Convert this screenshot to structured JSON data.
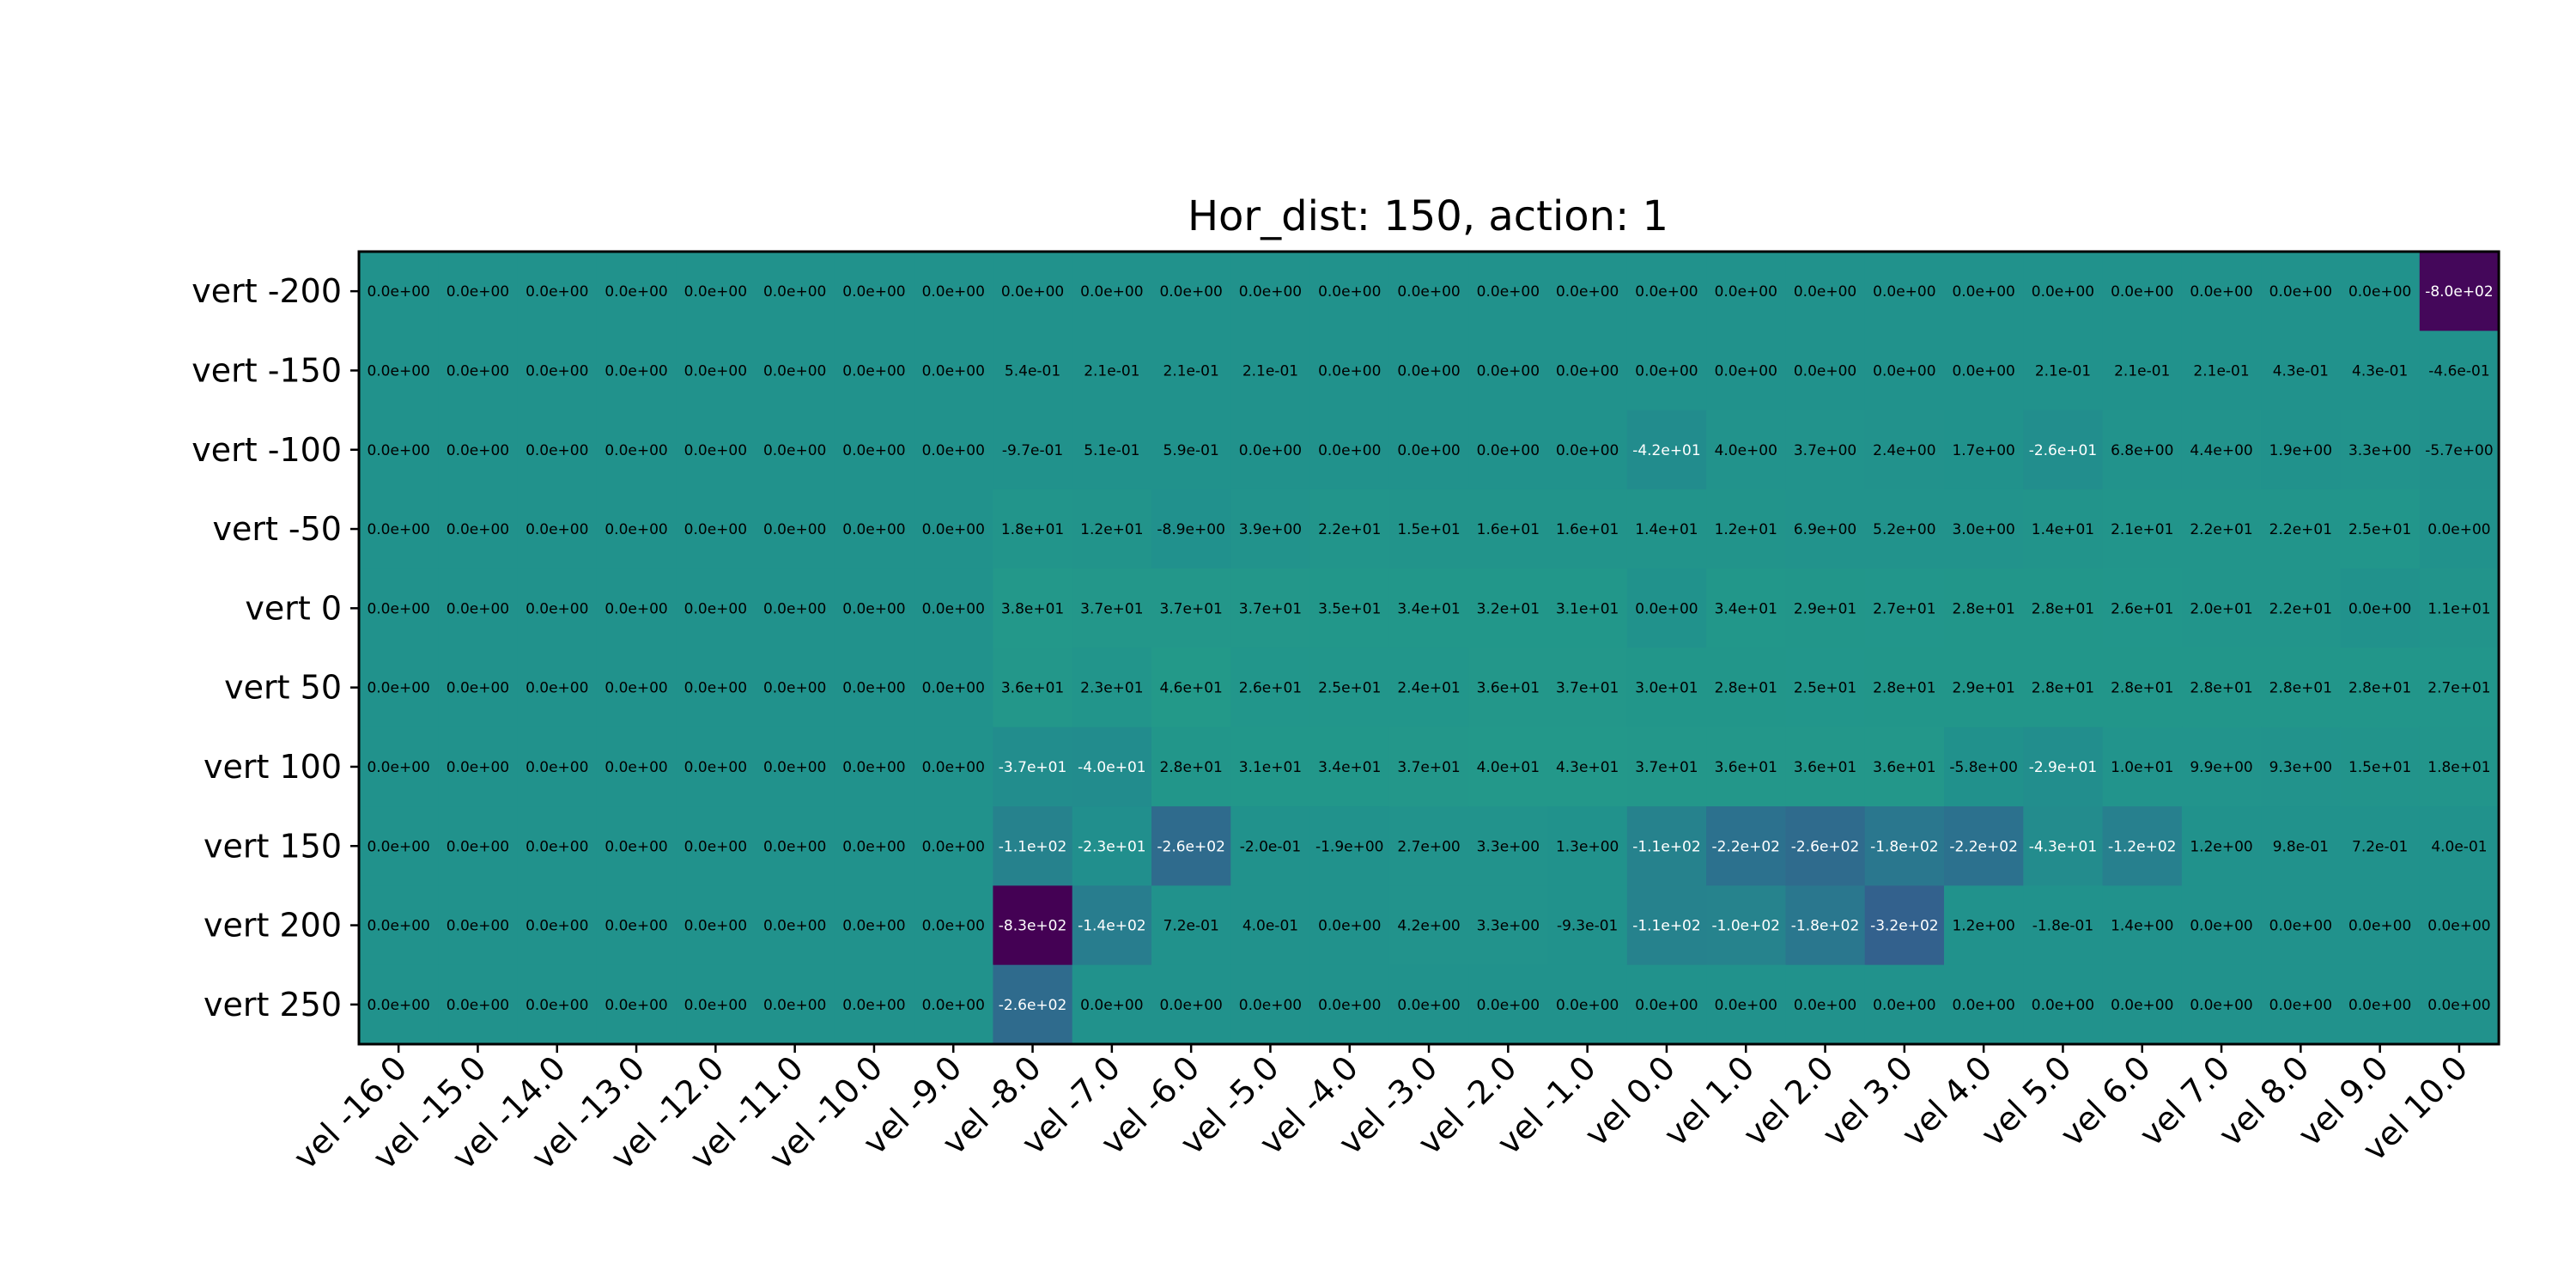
{
  "chart_data": {
    "type": "heatmap",
    "title": "Hor_dist: 150, action: 1",
    "xlabel": "",
    "ylabel": "",
    "colormap": "viridis",
    "color_range": [
      -830,
      800
    ],
    "grid": false,
    "x_labels": [
      "vel -16.0",
      "vel -15.0",
      "vel -14.0",
      "vel -13.0",
      "vel -12.0",
      "vel -11.0",
      "vel -10.0",
      "vel -9.0",
      "vel -8.0",
      "vel -7.0",
      "vel -6.0",
      "vel -5.0",
      "vel -4.0",
      "vel -3.0",
      "vel -2.0",
      "vel -1.0",
      "vel 0.0",
      "vel 1.0",
      "vel 2.0",
      "vel 3.0",
      "vel 4.0",
      "vel 5.0",
      "vel 6.0",
      "vel 7.0",
      "vel 8.0",
      "vel 9.0",
      "vel 10.0"
    ],
    "y_labels": [
      "vert -200",
      "vert -150",
      "vert -100",
      "vert -50",
      "vert 0",
      "vert 50",
      "vert 100",
      "vert 150",
      "vert 200",
      "vert 250"
    ],
    "values": [
      [
        0,
        0,
        0,
        0,
        0,
        0,
        0,
        0,
        0,
        0,
        0,
        0,
        0,
        0,
        0,
        0,
        0,
        0,
        0,
        0,
        0,
        0,
        0,
        0,
        0,
        0,
        -800
      ],
      [
        0,
        0,
        0,
        0,
        0,
        0,
        0,
        0,
        0.54,
        0.21,
        0.21,
        0.21,
        0,
        0,
        0,
        0,
        0,
        0,
        0,
        0,
        0,
        0.21,
        0.21,
        0.21,
        0.43,
        0.43,
        -0.46
      ],
      [
        0,
        0,
        0,
        0,
        0,
        0,
        0,
        0,
        -0.97,
        0.51,
        0.59,
        0,
        0,
        0,
        0,
        0,
        -42,
        4.0,
        3.7,
        2.4,
        1.7,
        -26,
        6.8,
        4.4,
        1.9,
        3.3,
        -5.7
      ],
      [
        0,
        0,
        0,
        0,
        0,
        0,
        0,
        0,
        18,
        12,
        -8.9,
        3.9,
        22,
        15,
        16,
        16,
        14,
        12,
        6.9,
        5.2,
        3.0,
        14,
        21,
        22,
        22,
        25,
        0
      ],
      [
        0,
        0,
        0,
        0,
        0,
        0,
        0,
        0,
        38,
        37,
        37,
        37,
        35,
        34,
        32,
        31,
        0,
        34,
        29,
        27,
        28,
        28,
        26,
        20,
        22,
        0,
        11
      ],
      [
        0,
        0,
        0,
        0,
        0,
        0,
        0,
        0,
        36,
        23,
        46,
        26,
        25,
        24,
        36,
        37,
        30,
        28,
        25,
        28,
        29,
        28,
        28,
        28,
        28,
        28,
        27
      ],
      [
        0,
        0,
        0,
        0,
        0,
        0,
        0,
        0,
        -37,
        -40,
        28,
        31,
        34,
        37,
        40,
        43,
        37,
        36,
        36,
        36,
        -5.8,
        -29,
        10,
        9.9,
        9.3,
        15,
        18
      ],
      [
        0,
        0,
        0,
        0,
        0,
        0,
        0,
        0,
        -110,
        -23,
        -260,
        -0.2,
        -1.9,
        2.7,
        3.3,
        1.3,
        -110,
        -220,
        -260,
        -180,
        -220,
        -43,
        -120,
        1.2,
        0.98,
        0.72,
        0.4
      ],
      [
        0,
        0,
        0,
        0,
        0,
        0,
        0,
        0,
        -830,
        -140,
        0.72,
        0.4,
        0,
        4.2,
        3.3,
        -0.93,
        -110,
        -100,
        -180,
        -320,
        1.2,
        -0.18,
        1.4,
        0,
        0,
        0,
        0
      ],
      [
        0,
        0,
        0,
        0,
        0,
        0,
        0,
        0,
        -260,
        0,
        0,
        0,
        0,
        0,
        0,
        0,
        0,
        0,
        0,
        0,
        0,
        0,
        0,
        0,
        0,
        0,
        0
      ]
    ],
    "cell_text": [
      [
        "0.0e+00",
        "0.0e+00",
        "0.0e+00",
        "0.0e+00",
        "0.0e+00",
        "0.0e+00",
        "0.0e+00",
        "0.0e+00",
        "0.0e+00",
        "0.0e+00",
        "0.0e+00",
        "0.0e+00",
        "0.0e+00",
        "0.0e+00",
        "0.0e+00",
        "0.0e+00",
        "0.0e+00",
        "0.0e+00",
        "0.0e+00",
        "0.0e+00",
        "0.0e+00",
        "0.0e+00",
        "0.0e+00",
        "0.0e+00",
        "0.0e+00",
        "0.0e+00",
        "-8.0e+02"
      ],
      [
        "0.0e+00",
        "0.0e+00",
        "0.0e+00",
        "0.0e+00",
        "0.0e+00",
        "0.0e+00",
        "0.0e+00",
        "0.0e+00",
        "5.4e-01",
        "2.1e-01",
        "2.1e-01",
        "2.1e-01",
        "0.0e+00",
        "0.0e+00",
        "0.0e+00",
        "0.0e+00",
        "0.0e+00",
        "0.0e+00",
        "0.0e+00",
        "0.0e+00",
        "0.0e+00",
        "2.1e-01",
        "2.1e-01",
        "2.1e-01",
        "4.3e-01",
        "4.3e-01",
        "-4.6e-01"
      ],
      [
        "0.0e+00",
        "0.0e+00",
        "0.0e+00",
        "0.0e+00",
        "0.0e+00",
        "0.0e+00",
        "0.0e+00",
        "0.0e+00",
        "-9.7e-01",
        "5.1e-01",
        "5.9e-01",
        "0.0e+00",
        "0.0e+00",
        "0.0e+00",
        "0.0e+00",
        "0.0e+00",
        "-4.2e+01",
        "4.0e+00",
        "3.7e+00",
        "2.4e+00",
        "1.7e+00",
        "-2.6e+01",
        "6.8e+00",
        "4.4e+00",
        "1.9e+00",
        "3.3e+00",
        "-5.7e+00"
      ],
      [
        "0.0e+00",
        "0.0e+00",
        "0.0e+00",
        "0.0e+00",
        "0.0e+00",
        "0.0e+00",
        "0.0e+00",
        "0.0e+00",
        "1.8e+01",
        "1.2e+01",
        "-8.9e+00",
        "3.9e+00",
        "2.2e+01",
        "1.5e+01",
        "1.6e+01",
        "1.6e+01",
        "1.4e+01",
        "1.2e+01",
        "6.9e+00",
        "5.2e+00",
        "3.0e+00",
        "1.4e+01",
        "2.1e+01",
        "2.2e+01",
        "2.2e+01",
        "2.5e+01",
        "0.0e+00"
      ],
      [
        "0.0e+00",
        "0.0e+00",
        "0.0e+00",
        "0.0e+00",
        "0.0e+00",
        "0.0e+00",
        "0.0e+00",
        "0.0e+00",
        "3.8e+01",
        "3.7e+01",
        "3.7e+01",
        "3.7e+01",
        "3.5e+01",
        "3.4e+01",
        "3.2e+01",
        "3.1e+01",
        "0.0e+00",
        "3.4e+01",
        "2.9e+01",
        "2.7e+01",
        "2.8e+01",
        "2.8e+01",
        "2.6e+01",
        "2.0e+01",
        "2.2e+01",
        "0.0e+00",
        "1.1e+01"
      ],
      [
        "0.0e+00",
        "0.0e+00",
        "0.0e+00",
        "0.0e+00",
        "0.0e+00",
        "0.0e+00",
        "0.0e+00",
        "0.0e+00",
        "3.6e+01",
        "2.3e+01",
        "4.6e+01",
        "2.6e+01",
        "2.5e+01",
        "2.4e+01",
        "3.6e+01",
        "3.7e+01",
        "3.0e+01",
        "2.8e+01",
        "2.5e+01",
        "2.8e+01",
        "2.9e+01",
        "2.8e+01",
        "2.8e+01",
        "2.8e+01",
        "2.8e+01",
        "2.8e+01",
        "2.7e+01"
      ],
      [
        "0.0e+00",
        "0.0e+00",
        "0.0e+00",
        "0.0e+00",
        "0.0e+00",
        "0.0e+00",
        "0.0e+00",
        "0.0e+00",
        "-3.7e+01",
        "-4.0e+01",
        "2.8e+01",
        "3.1e+01",
        "3.4e+01",
        "3.7e+01",
        "4.0e+01",
        "4.3e+01",
        "3.7e+01",
        "3.6e+01",
        "3.6e+01",
        "3.6e+01",
        "-5.8e+00",
        "-2.9e+01",
        "1.0e+01",
        "9.9e+00",
        "9.3e+00",
        "1.5e+01",
        "1.8e+01"
      ],
      [
        "0.0e+00",
        "0.0e+00",
        "0.0e+00",
        "0.0e+00",
        "0.0e+00",
        "0.0e+00",
        "0.0e+00",
        "0.0e+00",
        "-1.1e+02",
        "-2.3e+01",
        "-2.6e+02",
        "-2.0e-01",
        "-1.9e+00",
        "2.7e+00",
        "3.3e+00",
        "1.3e+00",
        "-1.1e+02",
        "-2.2e+02",
        "-2.6e+02",
        "-1.8e+02",
        "-2.2e+02",
        "-4.3e+01",
        "-1.2e+02",
        "1.2e+00",
        "9.8e-01",
        "7.2e-01",
        "4.0e-01"
      ],
      [
        "0.0e+00",
        "0.0e+00",
        "0.0e+00",
        "0.0e+00",
        "0.0e+00",
        "0.0e+00",
        "0.0e+00",
        "0.0e+00",
        "-8.3e+02",
        "-1.4e+02",
        "7.2e-01",
        "4.0e-01",
        "0.0e+00",
        "4.2e+00",
        "3.3e+00",
        "-9.3e-01",
        "-1.1e+02",
        "-1.0e+02",
        "-1.8e+02",
        "-3.2e+02",
        "1.2e+00",
        "-1.8e-01",
        "1.4e+00",
        "0.0e+00",
        "0.0e+00",
        "0.0e+00",
        "0.0e+00"
      ],
      [
        "0.0e+00",
        "0.0e+00",
        "0.0e+00",
        "0.0e+00",
        "0.0e+00",
        "0.0e+00",
        "0.0e+00",
        "0.0e+00",
        "-2.6e+02",
        "0.0e+00",
        "0.0e+00",
        "0.0e+00",
        "0.0e+00",
        "0.0e+00",
        "0.0e+00",
        "0.0e+00",
        "0.0e+00",
        "0.0e+00",
        "0.0e+00",
        "0.0e+00",
        "0.0e+00",
        "0.0e+00",
        "0.0e+00",
        "0.0e+00",
        "0.0e+00",
        "0.0e+00",
        "0.0e+00"
      ]
    ]
  }
}
